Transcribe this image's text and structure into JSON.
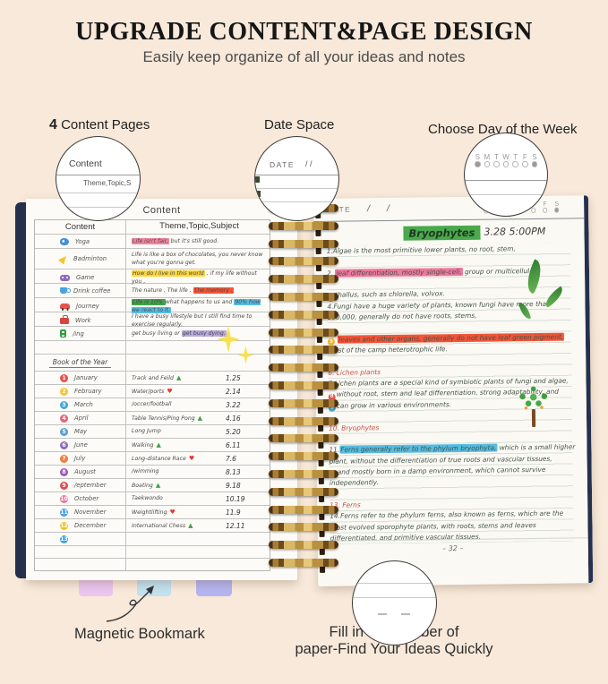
{
  "page": {
    "title": "UPGRADE CONTENT&PAGE DESIGN",
    "subtitle": "Easily keep organize of all your ideas and notes"
  },
  "callouts": {
    "content_pages": {
      "label_num": "4",
      "label": "Content Pages",
      "circle_heading": "Content",
      "circle_snippet": "Theme,Topic,S"
    },
    "date_space": {
      "label": "Date Space",
      "circle_date": "DATE",
      "circle_slashes": "/     /"
    },
    "day_week": {
      "label": "Choose Day of the Week",
      "days": [
        "S",
        "M",
        "T",
        "W",
        "T",
        "F",
        "S"
      ]
    },
    "fill_number": {
      "label_line1": "Fill in the number of",
      "label_line2": "paper-Find Your Ideas Quickly",
      "blank_dashes": "page-number-blank"
    },
    "bookmark": {
      "label": "Magnetic Bookmark"
    }
  },
  "left_page": {
    "page_title": "Content",
    "headers": [
      "Content",
      "Theme,Topic,Subject"
    ],
    "rows": [
      {
        "icon": "yoga",
        "label": "Yoga",
        "segs": [
          {
            "t": "Life isn't fair,",
            "h": "#f2839d"
          },
          {
            "t": " but it's still good."
          }
        ]
      },
      {
        "icon": "badminton",
        "label": "Badminton",
        "segs": [
          {
            "t": "Life is like a box of chocolates, you never know what you're gonna get."
          }
        ]
      },
      {
        "icon": "game",
        "label": "Game",
        "segs": [
          {
            "t": "How do I live in this world",
            "h": "#fdd73a"
          },
          {
            "t": " , if my life without you ,"
          }
        ]
      },
      {
        "icon": "coffee",
        "label": "Drink coffee",
        "segs": [
          {
            "t": "The nature , The life , "
          },
          {
            "t": "The memory .",
            "h": "#f25538"
          }
        ]
      },
      {
        "icon": "car",
        "label": "Journey",
        "segs": [
          {
            "t": "Life is 10% ",
            "h": "#3fa348"
          },
          {
            "t": "what happens to us and "
          },
          {
            "t": "90% how we react to it.",
            "h": "#56bce2"
          }
        ]
      },
      {
        "icon": "work",
        "label": "Work",
        "segs": [
          {
            "t": "I have a busy lifestyle but I still find time to exercise regularly."
          }
        ]
      },
      {
        "icon": "sing",
        "label": "/ing",
        "segs": [
          {
            "t": "get busy living or "
          },
          {
            "t": "get busy dying.",
            "h": "#b9a8e0"
          }
        ]
      }
    ],
    "section_title": "Book of the Year",
    "months": [
      {
        "num": "1",
        "color": "#e8534a",
        "name": "January",
        "theme": "Track and Feild",
        "sym": "triangle",
        "date": "1.25"
      },
      {
        "num": "2",
        "color": "#f5c431",
        "name": "February",
        "theme": "Water/ports",
        "sym": "heart",
        "date": "2.14"
      },
      {
        "num": "3",
        "color": "#45a7d9",
        "name": "March",
        "theme": "/occer/football",
        "sym": null,
        "date": "3.22"
      },
      {
        "num": "4",
        "color": "#e8617c",
        "name": "April",
        "theme": "Table Tennis/Ping Pong",
        "sym": "triangle",
        "date": "4.16"
      },
      {
        "num": "5",
        "color": "#5a9fd4",
        "name": "May",
        "theme": "Long Jump",
        "sym": null,
        "date": "5.20"
      },
      {
        "num": "6",
        "color": "#8e6bbf",
        "name": "June",
        "theme": "Walking",
        "sym": "triangle",
        "date": "6.11"
      },
      {
        "num": "7",
        "color": "#f07c3e",
        "name": "July",
        "theme": "Long-distance Race",
        "sym": "heart",
        "date": "7.6"
      },
      {
        "num": "8",
        "color": "#9b59b6",
        "name": "August",
        "theme": "/wimming",
        "sym": null,
        "date": "8.13"
      },
      {
        "num": "9",
        "color": "#d94f4f",
        "name": "/eptember",
        "theme": "Boating",
        "sym": "triangle",
        "date": "9.18"
      },
      {
        "num": "10",
        "color": "#e87ca0",
        "name": "October",
        "theme": "Taekwondo",
        "sym": null,
        "date": "10.19"
      },
      {
        "num": "11",
        "color": "#4aa3df",
        "name": "November",
        "theme": "Weightlifting",
        "sym": "heart",
        "date": "11.9"
      },
      {
        "num": "12",
        "color": "#f0c419",
        "name": "December",
        "theme": "International Chess",
        "sym": "triangle",
        "date": "12.11"
      },
      {
        "num": "13",
        "color": "#3ba7dc",
        "name": "",
        "theme": "",
        "sym": null,
        "date": ""
      }
    ]
  },
  "right_page": {
    "date_label": "DATE",
    "slashes": "/  /",
    "days": [
      "S",
      "M",
      "T",
      "W",
      "T",
      "F",
      "S"
    ],
    "note_title": "Bryophytes",
    "title_highlight": "#49a94c",
    "timestamp": "3.28 5:00PM",
    "page_number": "– 32 –",
    "lines": [
      {
        "segs": [
          {
            "t": "1.Algae is the most primitive lower plants, no root, stem,"
          }
        ]
      },
      {
        "segs": []
      },
      {
        "segs": [
          {
            "t": "2. "
          },
          {
            "t": "leaf differentiation, mostly single-cell,",
            "h": "#f0789e"
          },
          {
            "t": " group or multicellular"
          }
        ]
      },
      {
        "segs": []
      },
      {
        "m": {
          "n": "3",
          "c": "#3fa348"
        },
        "segs": [
          {
            "t": "thallus, such as chlorella, volvox."
          }
        ]
      },
      {
        "segs": [
          {
            "t": "4.Fungi have a huge variety of plants, known fungi have more than"
          }
        ]
      },
      {
        "segs": [
          {
            "t": "100,000, generally do not have roots, stems,"
          }
        ]
      },
      {
        "segs": []
      },
      {
        "m": {
          "n": "5",
          "c": "#f0b429"
        },
        "segs": [
          {
            "t": " "
          },
          {
            "t": "leaves and other organs, generally do not have leaf green pigment,",
            "h": "#f25538"
          }
        ]
      },
      {
        "segs": [
          {
            "t": "most of the camp heterotrophic life."
          }
        ]
      },
      {
        "segs": []
      },
      {
        "segs": [
          {
            "t": "6. Lichen plants",
            "red": true
          }
        ]
      },
      {
        "segs": [
          {
            "t": "7.Lichen plants are a special kind of symbiotic plants of fungi and algae,"
          }
        ]
      },
      {
        "m": {
          "n": "8",
          "c": "#e8534a"
        },
        "segs": [
          {
            "t": "without root, stem and leaf differentiation, strong adaptability, and"
          }
        ]
      },
      {
        "m": {
          "n": "9",
          "c": "#45a7d9"
        },
        "segs": [
          {
            "t": "can grow in various environments."
          }
        ]
      },
      {
        "segs": []
      },
      {
        "segs": [
          {
            "t": "10. Bryophytes",
            "red": true
          }
        ]
      },
      {
        "segs": []
      },
      {
        "segs": [
          {
            "t": "11."
          },
          {
            "t": "Ferns generally refer to the phylum bryophyta,",
            "h": "#56bce2"
          },
          {
            "t": " which is a small higher"
          }
        ]
      },
      {
        "segs": [
          {
            "t": "plant, without the differentiation of true roots and vascular tissues,"
          }
        ]
      },
      {
        "m": {
          "n": "12",
          "c": "#e8534a"
        },
        "segs": [
          {
            "t": "and mostly born in a damp environment, which cannot survive"
          }
        ]
      },
      {
        "segs": [
          {
            "t": "independently."
          }
        ]
      },
      {
        "segs": []
      },
      {
        "segs": [
          {
            "t": "13. Ferns",
            "red": true
          }
        ]
      },
      {
        "segs": [
          {
            "t": "14.Ferns refer to the phylum ferns, also known as ferns, which are the"
          }
        ]
      },
      {
        "segs": [
          {
            "t": "most evolved sporophyte plants, with roots, stems and leaves"
          }
        ]
      },
      {
        "segs": [
          {
            "t": "differentiated, and primitive vascular tissues."
          }
        ]
      }
    ]
  },
  "symbols": {
    "triangle": "▲",
    "heart": "♥"
  },
  "colors": {
    "background": "#f8e9da",
    "cover_navy": "#25304f",
    "triangle_green": "#43a047",
    "heart_red": "#e53935",
    "bookmark_pink": "#eac6ef",
    "bookmark_blue": "#c2e1f0",
    "bookmark_purple": "#b6b4ef",
    "red_heading": "#c84b42"
  }
}
